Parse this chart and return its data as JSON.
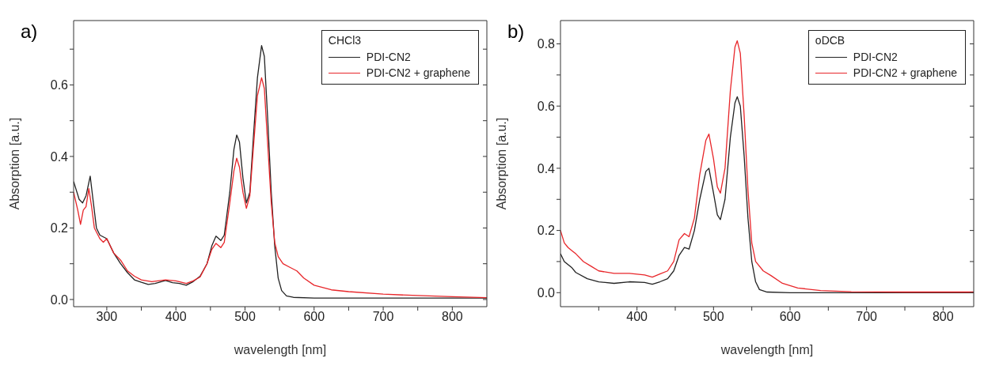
{
  "chart_data": [
    {
      "type": "line",
      "title": "a)",
      "xlabel": "wavelength [nm]",
      "ylabel": "Absorption [a.u.]",
      "legend_title": "CHCl3",
      "legend": "top right",
      "grid": false,
      "marker": "none",
      "line_style": "solid",
      "xlim": [
        252,
        850
      ],
      "ylim": [
        -0.02,
        0.78
      ],
      "xticks": [
        300,
        {
          "value": 350,
          "label": null
        },
        400,
        {
          "value": 450,
          "label": null
        },
        500,
        {
          "value": 550,
          "label": null
        },
        600,
        {
          "value": 650,
          "label": null
        },
        700,
        {
          "value": 750,
          "label": null
        },
        800
      ],
      "yticks": [
        {
          "value": 0,
          "label": "0.0"
        },
        {
          "value": 0.1,
          "label": null
        },
        0.2,
        {
          "value": 0.3,
          "label": null
        },
        0.4,
        {
          "value": 0.5,
          "label": null
        },
        0.6,
        {
          "value": 0.7,
          "label": null
        }
      ],
      "series": [
        {
          "name": "PDI-CN2",
          "color": "#222222",
          "x": [
            252,
            260,
            265,
            270,
            276,
            280,
            285,
            290,
            300,
            310,
            320,
            330,
            340,
            350,
            360,
            370,
            385,
            395,
            405,
            415,
            425,
            435,
            445,
            452,
            458,
            465,
            470,
            478,
            484,
            488,
            492,
            497,
            502,
            507,
            512,
            518,
            524,
            528,
            533,
            538,
            543,
            548,
            553,
            560,
            570,
            600,
            700,
            850
          ],
          "values": [
            0.33,
            0.28,
            0.27,
            0.29,
            0.345,
            0.28,
            0.2,
            0.18,
            0.17,
            0.13,
            0.1,
            0.075,
            0.055,
            0.048,
            0.042,
            0.045,
            0.053,
            0.047,
            0.045,
            0.04,
            0.05,
            0.065,
            0.1,
            0.15,
            0.177,
            0.165,
            0.18,
            0.3,
            0.42,
            0.46,
            0.44,
            0.34,
            0.27,
            0.3,
            0.45,
            0.62,
            0.71,
            0.68,
            0.5,
            0.3,
            0.15,
            0.06,
            0.025,
            0.01,
            0.006,
            0.004,
            0.004,
            0.004
          ]
        },
        {
          "name": "PDI-CN2 + graphene",
          "color": "#e8262a",
          "x": [
            252,
            258,
            262,
            266,
            270,
            274,
            278,
            282,
            290,
            295,
            300,
            310,
            320,
            330,
            340,
            350,
            365,
            385,
            400,
            415,
            425,
            435,
            445,
            452,
            458,
            465,
            470,
            478,
            484,
            488,
            492,
            497,
            502,
            507,
            512,
            518,
            524,
            528,
            533,
            538,
            543,
            548,
            555,
            565,
            575,
            585,
            600,
            625,
            650,
            700,
            750,
            800,
            850
          ],
          "values": [
            0.3,
            0.25,
            0.21,
            0.25,
            0.26,
            0.31,
            0.26,
            0.2,
            0.17,
            0.16,
            0.17,
            0.13,
            0.11,
            0.08,
            0.065,
            0.055,
            0.05,
            0.055,
            0.052,
            0.045,
            0.052,
            0.063,
            0.1,
            0.14,
            0.157,
            0.145,
            0.16,
            0.27,
            0.36,
            0.395,
            0.37,
            0.3,
            0.255,
            0.29,
            0.42,
            0.57,
            0.62,
            0.59,
            0.43,
            0.27,
            0.16,
            0.12,
            0.1,
            0.09,
            0.08,
            0.06,
            0.04,
            0.027,
            0.022,
            0.015,
            0.011,
            0.008,
            0.005
          ]
        }
      ]
    },
    {
      "type": "line",
      "title": "b)",
      "xlabel": "wavelength [nm]",
      "ylabel": "Absorption [a.u.]",
      "legend_title": "oDCB",
      "legend": "top right",
      "grid": false,
      "marker": "none",
      "line_style": "solid",
      "xlim": [
        300,
        840
      ],
      "ylim": [
        -0.045,
        0.875
      ],
      "xticks": [
        {
          "value": 350,
          "label": null
        },
        400,
        {
          "value": 450,
          "label": null
        },
        500,
        {
          "value": 550,
          "label": null
        },
        600,
        {
          "value": 650,
          "label": null
        },
        700,
        {
          "value": 750,
          "label": null
        },
        800
      ],
      "yticks": [
        {
          "value": 0,
          "label": "0.0"
        },
        {
          "value": 0.1,
          "label": null
        },
        0.2,
        {
          "value": 0.3,
          "label": null
        },
        0.4,
        {
          "value": 0.5,
          "label": null
        },
        0.6,
        {
          "value": 0.7,
          "label": null
        },
        0.8
      ],
      "series": [
        {
          "name": "PDI-CN2",
          "color": "#222222",
          "x": [
            300,
            305,
            315,
            320,
            335,
            350,
            370,
            390,
            410,
            420,
            430,
            440,
            448,
            455,
            462,
            468,
            475,
            482,
            490,
            494,
            500,
            505,
            509,
            515,
            522,
            528,
            531,
            535,
            540,
            545,
            550,
            555,
            560,
            570,
            600,
            700,
            840
          ],
          "values": [
            0.125,
            0.1,
            0.08,
            0.065,
            0.045,
            0.035,
            0.03,
            0.035,
            0.033,
            0.027,
            0.035,
            0.045,
            0.07,
            0.12,
            0.145,
            0.14,
            0.2,
            0.3,
            0.39,
            0.4,
            0.32,
            0.25,
            0.235,
            0.3,
            0.5,
            0.61,
            0.63,
            0.6,
            0.44,
            0.24,
            0.1,
            0.035,
            0.01,
            0.002,
            0.0,
            0.0,
            0.0
          ]
        },
        {
          "name": "PDI-CN2 + graphene",
          "color": "#e8262a",
          "x": [
            300,
            305,
            310,
            315,
            320,
            330,
            340,
            350,
            370,
            390,
            410,
            420,
            430,
            440,
            448,
            455,
            462,
            468,
            475,
            482,
            490,
            494,
            500,
            505,
            509,
            515,
            522,
            528,
            531,
            535,
            540,
            545,
            550,
            555,
            565,
            575,
            590,
            610,
            640,
            680,
            750,
            840
          ],
          "values": [
            0.2,
            0.16,
            0.145,
            0.135,
            0.125,
            0.1,
            0.085,
            0.07,
            0.062,
            0.062,
            0.057,
            0.05,
            0.06,
            0.07,
            0.1,
            0.17,
            0.19,
            0.18,
            0.24,
            0.38,
            0.49,
            0.51,
            0.43,
            0.34,
            0.32,
            0.4,
            0.65,
            0.79,
            0.81,
            0.77,
            0.57,
            0.33,
            0.16,
            0.1,
            0.07,
            0.055,
            0.03,
            0.015,
            0.007,
            0.003,
            0.002,
            0.002
          ]
        }
      ]
    }
  ]
}
